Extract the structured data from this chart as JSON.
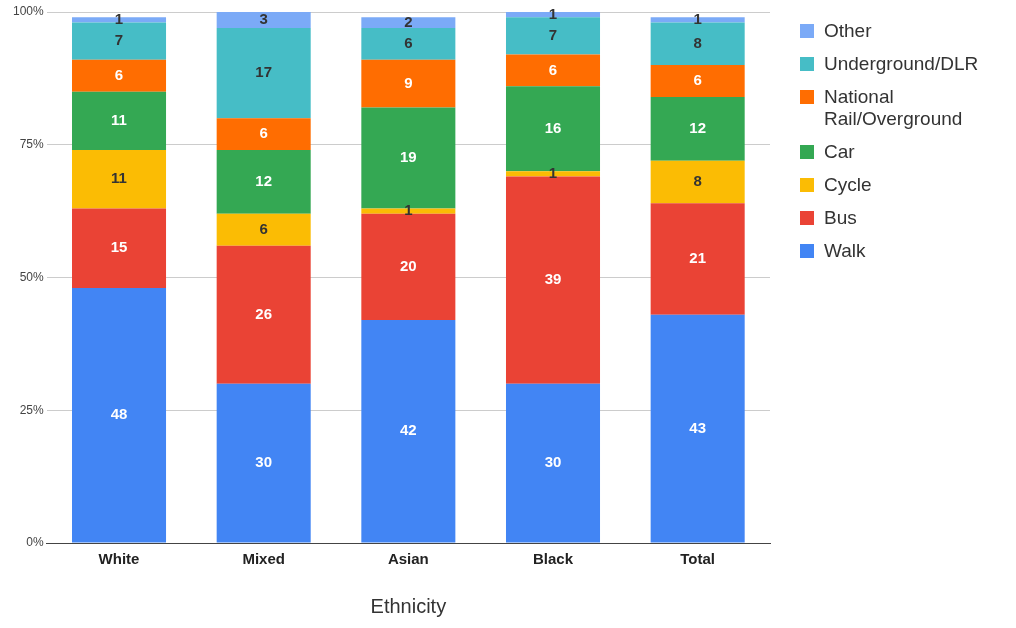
{
  "chart_data": {
    "type": "bar",
    "stacked": true,
    "xlabel": "Ethnicity",
    "categories": [
      "White",
      "Mixed",
      "Asian",
      "Black",
      "Total"
    ],
    "series": [
      {
        "name": "Walk",
        "color": "#4285f4",
        "values": [
          48,
          30,
          42,
          30,
          43
        ]
      },
      {
        "name": "Bus",
        "color": "#ea4335",
        "values": [
          15,
          26,
          20,
          39,
          21
        ]
      },
      {
        "name": "Cycle",
        "color": "#fbbc04",
        "values": [
          11,
          6,
          1,
          1,
          8
        ]
      },
      {
        "name": "Car",
        "color": "#34a853",
        "values": [
          11,
          12,
          19,
          16,
          12
        ]
      },
      {
        "name": "National Rail/Overground",
        "color": "#ff6d01",
        "values": [
          6,
          6,
          9,
          6,
          6
        ]
      },
      {
        "name": "Underground/DLR",
        "color": "#46bdc6",
        "values": [
          7,
          17,
          6,
          7,
          8
        ]
      },
      {
        "name": "Other",
        "color": "#7baaf7",
        "values": [
          1,
          3,
          2,
          1,
          1
        ]
      }
    ],
    "ylim": [
      0,
      100
    ],
    "yticks": [
      {
        "value": 0,
        "label": "0%"
      },
      {
        "value": 25,
        "label": "25%"
      },
      {
        "value": 50,
        "label": "50%"
      },
      {
        "value": 75,
        "label": "75%"
      },
      {
        "value": 100,
        "label": "100%"
      }
    ],
    "grid": "y",
    "legend": "right",
    "data_labels": true
  }
}
